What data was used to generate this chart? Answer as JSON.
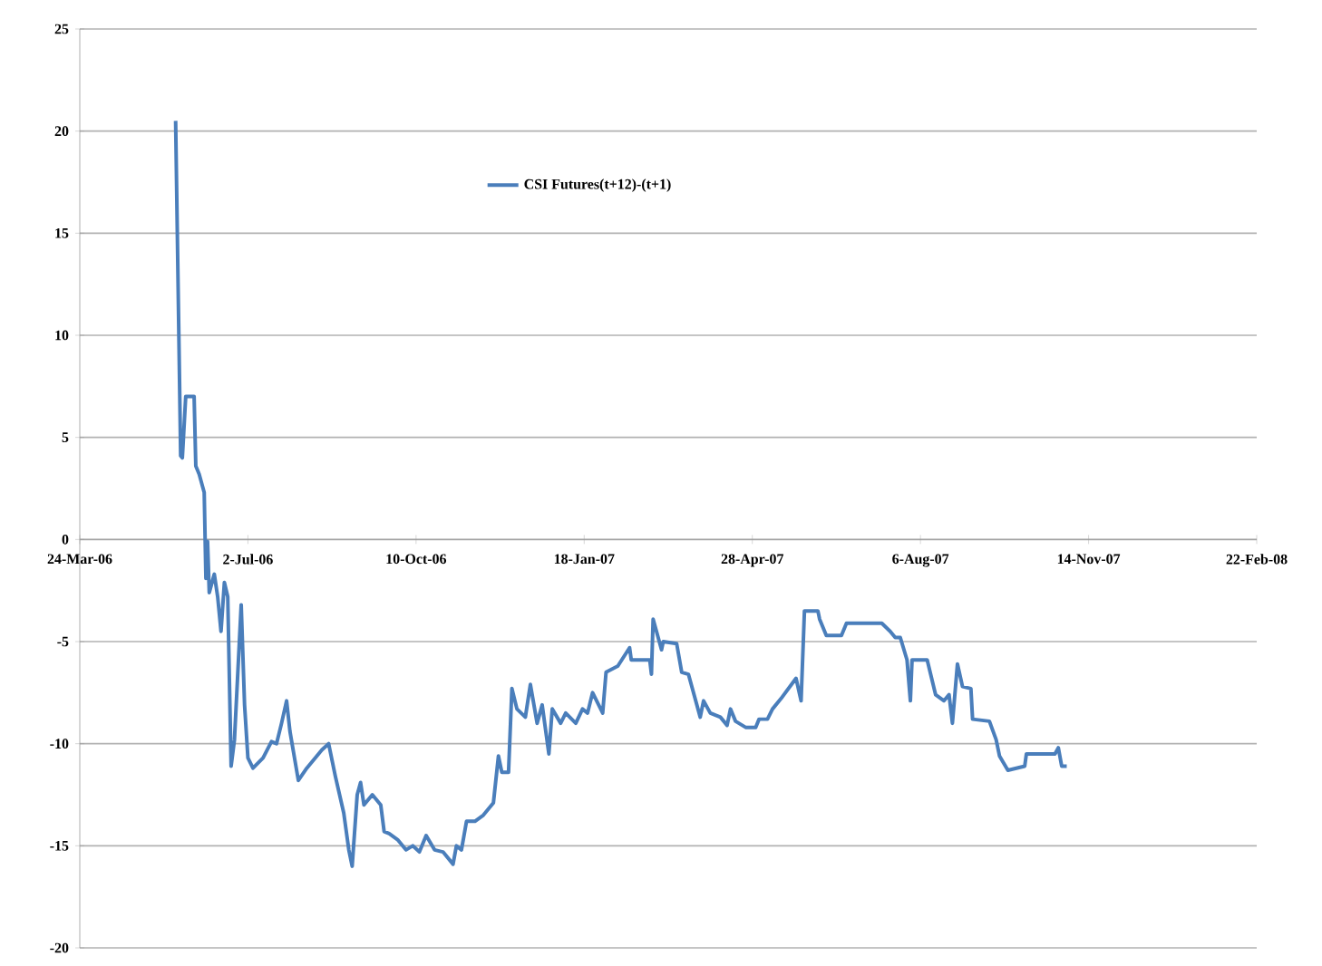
{
  "chart_data": {
    "type": "line",
    "legend": "top",
    "grid": "y",
    "line_style": "solid",
    "xlim": [
      "2006-03-24",
      "2008-02-22"
    ],
    "xticks": [
      {
        "value": "2006-03-24",
        "label": "24-Mar-06"
      },
      {
        "value": "2006-07-02",
        "label": "2-Jul-06"
      },
      {
        "value": "2006-10-10",
        "label": "10-Oct-06"
      },
      {
        "value": "2007-01-18",
        "label": "18-Jan-07"
      },
      {
        "value": "2007-04-28",
        "label": "28-Apr-07"
      },
      {
        "value": "2007-08-06",
        "label": "6-Aug-07"
      },
      {
        "value": "2007-11-14",
        "label": "14-Nov-07"
      },
      {
        "value": "2008-02-22",
        "label": "22-Feb-08"
      }
    ],
    "ylim": [
      -20,
      25
    ],
    "yticks": [
      -20,
      -15,
      -10,
      -5,
      0,
      5,
      10,
      15,
      20,
      25
    ],
    "series": [
      {
        "name": "CSI Futures(t+12)-(t+1)",
        "color": "#4a7ebb",
        "x": [
          "2006-05-20",
          "2006-05-23",
          "2006-05-24",
          "2006-05-26",
          "2006-05-31",
          "2006-06-01",
          "2006-06-03",
          "2006-06-06",
          "2006-06-07",
          "2006-06-08",
          "2006-06-09",
          "2006-06-12",
          "2006-06-14",
          "2006-06-16",
          "2006-06-18",
          "2006-06-20",
          "2006-06-22",
          "2006-06-24",
          "2006-06-28",
          "2006-06-30",
          "2006-07-02",
          "2006-07-05",
          "2006-07-11",
          "2006-07-16",
          "2006-07-19",
          "2006-07-22",
          "2006-07-25",
          "2006-07-27",
          "2006-08-01",
          "2006-08-06",
          "2006-08-15",
          "2006-08-19",
          "2006-08-23",
          "2006-08-28",
          "2006-08-31",
          "2006-09-02",
          "2006-09-05",
          "2006-09-07",
          "2006-09-09",
          "2006-09-14",
          "2006-09-19",
          "2006-09-21",
          "2006-09-24",
          "2006-09-29",
          "2006-10-04",
          "2006-10-08",
          "2006-10-12",
          "2006-10-16",
          "2006-10-21",
          "2006-10-26",
          "2006-11-01",
          "2006-11-03",
          "2006-11-06",
          "2006-11-09",
          "2006-11-14",
          "2006-11-19",
          "2006-11-25",
          "2006-11-28",
          "2006-11-30",
          "2006-12-04",
          "2006-12-06",
          "2006-12-09",
          "2006-12-14",
          "2006-12-17",
          "2006-12-21",
          "2006-12-24",
          "2006-12-28",
          "2006-12-30",
          "2007-01-04",
          "2007-01-07",
          "2007-01-13",
          "2007-01-17",
          "2007-01-20",
          "2007-01-23",
          "2007-01-29",
          "2007-01-31",
          "2007-02-07",
          "2007-02-14",
          "2007-02-15",
          "2007-02-26",
          "2007-02-27",
          "2007-02-28",
          "2007-03-05",
          "2007-03-06",
          "2007-03-14",
          "2007-03-17",
          "2007-03-21",
          "2007-03-28",
          "2007-03-30",
          "2007-04-03",
          "2007-04-09",
          "2007-04-13",
          "2007-04-15",
          "2007-04-18",
          "2007-04-24",
          "2007-04-30",
          "2007-05-02",
          "2007-05-07",
          "2007-05-10",
          "2007-05-15",
          "2007-05-24",
          "2007-05-27",
          "2007-05-29",
          "2007-06-06",
          "2007-06-07",
          "2007-06-11",
          "2007-06-20",
          "2007-06-23",
          "2007-07-14",
          "2007-07-19",
          "2007-07-22",
          "2007-07-25",
          "2007-07-29",
          "2007-07-31",
          "2007-08-01",
          "2007-08-10",
          "2007-08-15",
          "2007-08-20",
          "2007-08-23",
          "2007-08-25",
          "2007-08-28",
          "2007-08-31",
          "2007-09-05",
          "2007-09-06",
          "2007-09-16",
          "2007-09-20",
          "2007-09-22",
          "2007-09-27",
          "2007-10-07",
          "2007-10-08",
          "2007-10-25",
          "2007-10-27",
          "2007-10-29",
          "2007-11-01"
        ],
        "values": [
          20.5,
          4.1,
          4.0,
          7.0,
          7.0,
          3.6,
          3.2,
          2.3,
          -1.9,
          -0.1,
          -2.6,
          -1.7,
          -2.8,
          -4.5,
          -2.1,
          -2.8,
          -11.1,
          -9.8,
          -3.2,
          -8.1,
          -10.7,
          -11.2,
          -10.7,
          -9.9,
          -10.0,
          -9.0,
          -7.9,
          -9.4,
          -11.8,
          -11.2,
          -10.3,
          -10.0,
          -11.6,
          -13.4,
          -15.2,
          -16.0,
          -12.5,
          -11.9,
          -13.0,
          -12.5,
          -13.0,
          -14.3,
          -14.4,
          -14.7,
          -15.2,
          -15.0,
          -15.3,
          -14.5,
          -15.2,
          -15.3,
          -15.9,
          -15.0,
          -15.2,
          -13.8,
          -13.8,
          -13.5,
          -12.9,
          -10.6,
          -11.4,
          -11.4,
          -7.3,
          -8.3,
          -8.7,
          -7.1,
          -9.0,
          -8.1,
          -10.5,
          -8.3,
          -9.0,
          -8.5,
          -9.0,
          -8.3,
          -8.5,
          -7.5,
          -8.5,
          -6.5,
          -6.2,
          -5.3,
          -5.9,
          -5.9,
          -6.6,
          -3.9,
          -5.4,
          -5.0,
          -5.1,
          -6.5,
          -6.6,
          -8.7,
          -7.9,
          -8.5,
          -8.7,
          -9.1,
          -8.3,
          -8.9,
          -9.2,
          -9.2,
          -8.8,
          -8.8,
          -8.3,
          -7.8,
          -6.8,
          -7.9,
          -3.5,
          -3.5,
          -3.9,
          -4.7,
          -4.7,
          -4.1,
          -4.1,
          -4.5,
          -4.8,
          -4.8,
          -5.9,
          -7.9,
          -5.9,
          -5.9,
          -7.6,
          -7.9,
          -7.6,
          -9.0,
          -6.1,
          -7.2,
          -7.3,
          -8.8,
          -8.9,
          -9.8,
          -10.6,
          -11.3,
          -11.1,
          -10.5,
          -10.5,
          -10.2,
          -11.1,
          -11.1
        ]
      }
    ]
  }
}
